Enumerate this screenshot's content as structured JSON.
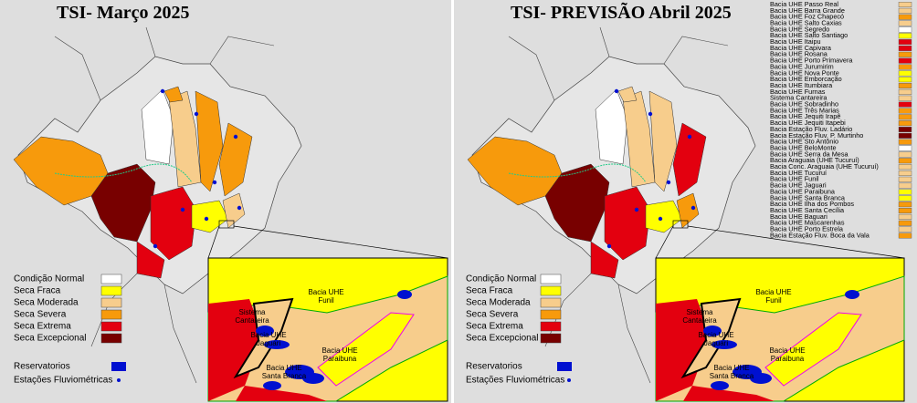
{
  "panels": [
    {
      "title": "TSI- Março 2025"
    },
    {
      "title": "TSI- PREVISÃO Abril 2025"
    }
  ],
  "legend": {
    "items": [
      {
        "label": "Condição Normal",
        "color": "#ffffff"
      },
      {
        "label": "Seca Fraca",
        "color": "#ffff00"
      },
      {
        "label": "Seca Moderada",
        "color": "#f7cd8c"
      },
      {
        "label": "Seca Severa",
        "color": "#f79a0c"
      },
      {
        "label": "Seca Extrema",
        "color": "#e3000f"
      },
      {
        "label": "Seca Excepcional",
        "color": "#780000"
      }
    ],
    "reservoirs": {
      "label": "Reservatorios",
      "color": "#0010d0"
    },
    "stations": {
      "label": "Estações Fluviométricas",
      "color": "#0010d0"
    }
  },
  "inset_labels": [
    "Sistema Cantareira",
    "Bacia UHE Funil",
    "Bacia UHE Jaguari",
    "Bacia UHE Paraibuna",
    "Bacia UHE Santa Branca"
  ],
  "basins": [
    {
      "name": "Bacia UHE Passo Real",
      "color": "#f7cd8c"
    },
    {
      "name": "Bacia UHE Barra Grande",
      "color": "#f7cd8c"
    },
    {
      "name": "Bacia UHE Foz Chapecó",
      "color": "#f79a0c"
    },
    {
      "name": "Bacia UHE Salto Caxias",
      "color": "#f7cd8c"
    },
    {
      "name": "Bacia UHE Segredo",
      "color": "#ffffff"
    },
    {
      "name": "Bacia UHE Salto Santiago",
      "color": "#ffff00"
    },
    {
      "name": "Bacia UHE Itaipu",
      "color": "#e3000f"
    },
    {
      "name": "Bacia UHE Capivara",
      "color": "#e3000f"
    },
    {
      "name": "Bacia UHE Rosana",
      "color": "#f79a0c"
    },
    {
      "name": "Bacia UHE Porto Primavera",
      "color": "#e3000f"
    },
    {
      "name": "Bacia UHE Jurumirim",
      "color": "#f79a0c"
    },
    {
      "name": "Bacia UHE Nova Ponte",
      "color": "#ffff00"
    },
    {
      "name": "Bacia UHE Emborcação",
      "color": "#ffff00"
    },
    {
      "name": "Bacia UHE Itumbiara",
      "color": "#f79a0c"
    },
    {
      "name": "Bacia UHE Furnas",
      "color": "#f7cd8c"
    },
    {
      "name": "Sistema Cantareira",
      "color": "#f7cd8c"
    },
    {
      "name": "Bacia UHE Sobradinho",
      "color": "#e3000f"
    },
    {
      "name": "Bacia UHE Três Marias",
      "color": "#f79a0c"
    },
    {
      "name": "Bacia UHE Jequiti Irapê",
      "color": "#f79a0c"
    },
    {
      "name": "Bacia UHE Jequiti Itapebi",
      "color": "#f79a0c"
    },
    {
      "name": "Bacia Estação Fluv. Ladário",
      "color": "#780000"
    },
    {
      "name": "Bacia Estação Fluv. P. Murtinho",
      "color": "#780000"
    },
    {
      "name": "Bacia UHE Sto Antônio",
      "color": "#f79a0c"
    },
    {
      "name": "Bacia UHE BeloMonte",
      "color": "#ffffff"
    },
    {
      "name": "Bacia UHE Serra da Mesa",
      "color": "#f7cd8c"
    },
    {
      "name": "Bacia Araguaia (UHE Tucuruí)",
      "color": "#f79a0c"
    },
    {
      "name": "Bacia Conc. Araguaia (UHE Tucuruí)",
      "color": "#f7cd8c"
    },
    {
      "name": "Bacia UHE Tucuruí",
      "color": "#f7cd8c"
    },
    {
      "name": "Bacia UHE Funil",
      "color": "#f7cd8c"
    },
    {
      "name": "Bacia UHE Jaguari",
      "color": "#f7cd8c"
    },
    {
      "name": "Bacia UHE Paraibuna",
      "color": "#ffff00"
    },
    {
      "name": "Bacia UHE Santa Branca",
      "color": "#ffff00"
    },
    {
      "name": "Bacia UHE Ilha dos Pombos",
      "color": "#f79a0c"
    },
    {
      "name": "Bacia UHE Santa Cecília",
      "color": "#f79a0c"
    },
    {
      "name": "Bacia UHE Baguari",
      "color": "#f7cd8c"
    },
    {
      "name": "Bacia UHE Mascarenhas",
      "color": "#f79a0c"
    },
    {
      "name": "Bacia UHE Porto Estrela",
      "color": "#f7cd8c"
    },
    {
      "name": "Bacia Estação Fluv. Boca da Vala",
      "color": "#f79a0c"
    }
  ]
}
